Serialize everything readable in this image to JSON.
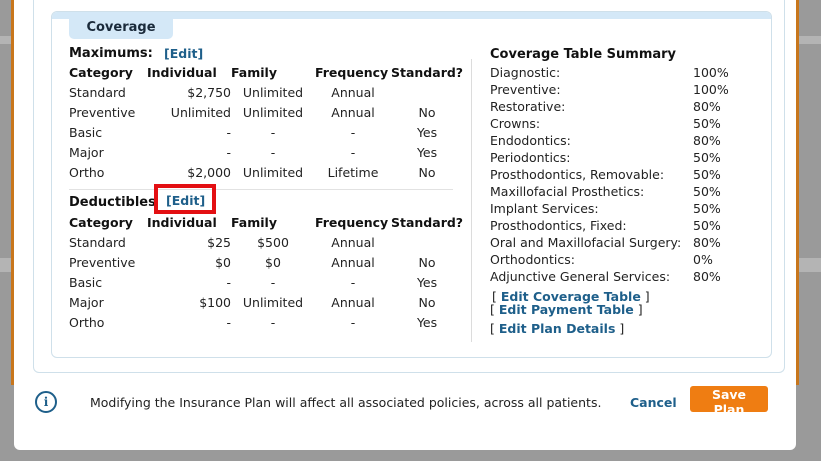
{
  "tab": {
    "label": "Coverage"
  },
  "maximums": {
    "title": "Maximums:",
    "edit_label": "[Edit]",
    "columns": [
      "Category",
      "Individual",
      "Family",
      "Frequency",
      "Standard?"
    ],
    "rows": [
      [
        "Standard",
        "$2,750",
        "Unlimited",
        "Annual",
        ""
      ],
      [
        "Preventive",
        "Unlimited",
        "Unlimited",
        "Annual",
        "No"
      ],
      [
        "Basic",
        "-",
        "-",
        "-",
        "Yes"
      ],
      [
        "Major",
        "-",
        "-",
        "-",
        "Yes"
      ],
      [
        "Ortho",
        "$2,000",
        "Unlimited",
        "Lifetime",
        "No"
      ]
    ]
  },
  "deductibles": {
    "title": "Deductibles",
    "edit_label": "[Edit]",
    "columns": [
      "Category",
      "Individual",
      "Family",
      "Frequency",
      "Standard?"
    ],
    "rows": [
      [
        "Standard",
        "$25",
        "$500",
        "Annual",
        ""
      ],
      [
        "Preventive",
        "$0",
        "$0",
        "Annual",
        "No"
      ],
      [
        "Basic",
        "-",
        "-",
        "-",
        "Yes"
      ],
      [
        "Major",
        "$100",
        "Unlimited",
        "Annual",
        "No"
      ],
      [
        "Ortho",
        "-",
        "-",
        "-",
        "Yes"
      ]
    ]
  },
  "summary": {
    "title": "Coverage Table Summary",
    "rows": [
      [
        "Diagnostic:",
        "100%"
      ],
      [
        "Preventive:",
        "100%"
      ],
      [
        "Restorative:",
        "80%"
      ],
      [
        "Crowns:",
        "50%"
      ],
      [
        "Endodontics:",
        "80%"
      ],
      [
        "Periodontics:",
        "50%"
      ],
      [
        "Prosthodontics, Removable:",
        "50%"
      ],
      [
        "Maxillofacial Prosthetics:",
        "50%"
      ],
      [
        "Implant Services:",
        "50%"
      ],
      [
        "Prosthodontics, Fixed:",
        "50%"
      ],
      [
        "Oral and Maxillofacial Surgery:",
        "80%"
      ],
      [
        "Orthodontics:",
        "0%"
      ],
      [
        "Adjunctive General Services:",
        "80%"
      ]
    ],
    "links": {
      "edit_coverage_table": "Edit Coverage Table",
      "edit_payment_table": "Edit Payment Table",
      "edit_plan_details": "Edit Plan Details",
      "open_bracket": "[",
      "close_bracket": "]"
    }
  },
  "footer": {
    "info_icon": "info-icon",
    "info_glyph": "i",
    "message": "Modifying the Insurance Plan will affect all associated policies, across all patients.",
    "cancel_label": "Cancel",
    "save_label": "Save Plan"
  },
  "colors": {
    "accent": "#1e5f8a",
    "save_button": "#ef7d12",
    "highlight": "#e30f12",
    "tab_bg": "#d4e8f7"
  }
}
